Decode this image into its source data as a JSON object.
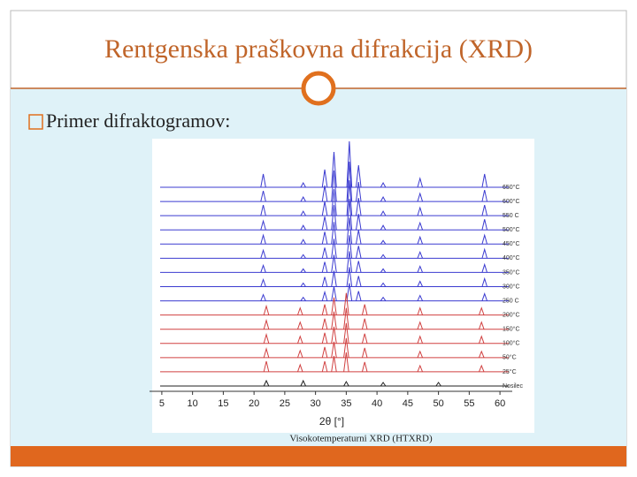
{
  "slide": {
    "title": "Rentgenska praškovna difrakcija (XRD)",
    "bullet": "Primer difraktogramov:",
    "caption": "Visokotemperaturni XRD (HTXRD)"
  },
  "figure": {
    "type": "line",
    "x_label": "2θ [°]",
    "xlim": [
      3,
      62
    ],
    "xticks": [
      5,
      10,
      15,
      20,
      25,
      30,
      35,
      40,
      45,
      50,
      55,
      60
    ],
    "series": [
      {
        "name": "650°C",
        "color": "#3b3bd0",
        "peaks": [
          21.5,
          28,
          31.5,
          33,
          35.5,
          37,
          41,
          47,
          57.5
        ],
        "heights": [
          15,
          5,
          20,
          40,
          52,
          25,
          5,
          10,
          15
        ]
      },
      {
        "name": "600°C",
        "color": "#3b3bd0",
        "peaks": [
          21.5,
          28,
          31.5,
          33,
          35.5,
          37,
          41,
          47,
          57.5
        ],
        "heights": [
          12,
          5,
          18,
          35,
          45,
          22,
          5,
          9,
          13
        ]
      },
      {
        "name": "550 C",
        "color": "#3b3bd0",
        "peaks": [
          21.5,
          28,
          31.5,
          33,
          35.5,
          37,
          41,
          47,
          57.5
        ],
        "heights": [
          12,
          5,
          16,
          30,
          40,
          20,
          5,
          9,
          12
        ]
      },
      {
        "name": "500°C",
        "color": "#3b3bd0",
        "peaks": [
          21.5,
          28,
          31.5,
          33,
          35.5,
          37,
          41,
          47,
          57.5
        ],
        "heights": [
          10,
          5,
          15,
          28,
          35,
          18,
          5,
          8,
          12
        ]
      },
      {
        "name": "450°C",
        "color": "#3b3bd0",
        "peaks": [
          21.5,
          28,
          31.5,
          33,
          35.5,
          37,
          41,
          47,
          57.5
        ],
        "heights": [
          10,
          5,
          14,
          25,
          30,
          16,
          4,
          8,
          10
        ]
      },
      {
        "name": "400°C",
        "color": "#3b3bd0",
        "peaks": [
          21.5,
          28,
          31.5,
          33,
          35.5,
          37,
          41,
          47,
          57.5
        ],
        "heights": [
          9,
          4,
          12,
          22,
          26,
          14,
          4,
          7,
          10
        ]
      },
      {
        "name": "350°C",
        "color": "#3b3bd0",
        "peaks": [
          21.5,
          28,
          31.5,
          33,
          35.5,
          37,
          41,
          47,
          57.5
        ],
        "heights": [
          8,
          4,
          12,
          20,
          24,
          13,
          4,
          7,
          9
        ]
      },
      {
        "name": "300°C",
        "color": "#3b3bd0",
        "peaks": [
          21.5,
          28,
          31.5,
          33,
          35.5,
          37,
          41,
          47,
          57.5
        ],
        "heights": [
          8,
          4,
          11,
          18,
          22,
          12,
          4,
          6,
          9
        ]
      },
      {
        "name": "250 C",
        "color": "#3b3bd0",
        "peaks": [
          21.5,
          28,
          31.5,
          33,
          35.5,
          37,
          41,
          47,
          57.5
        ],
        "heights": [
          7,
          4,
          10,
          16,
          20,
          11,
          4,
          6,
          8
        ]
      },
      {
        "name": "200°C",
        "color": "#d04040",
        "peaks": [
          22,
          27.5,
          31.5,
          33,
          35,
          38,
          47,
          57
        ],
        "heights": [
          10,
          8,
          12,
          20,
          25,
          12,
          8,
          8
        ]
      },
      {
        "name": "150°C",
        "color": "#d04040",
        "peaks": [
          22,
          27.5,
          31.5,
          33,
          35,
          38,
          47,
          57
        ],
        "heights": [
          10,
          8,
          12,
          20,
          24,
          12,
          8,
          8
        ]
      },
      {
        "name": "100°C",
        "color": "#d04040",
        "peaks": [
          22,
          27.5,
          31.5,
          33,
          35,
          38,
          47,
          57
        ],
        "heights": [
          10,
          8,
          12,
          19,
          23,
          11,
          8,
          8
        ]
      },
      {
        "name": "50°C",
        "color": "#d04040",
        "peaks": [
          22,
          27.5,
          31.5,
          33,
          35,
          38,
          47,
          57
        ],
        "heights": [
          10,
          8,
          12,
          18,
          22,
          11,
          7,
          7
        ]
      },
      {
        "name": "25°C",
        "color": "#d04040",
        "peaks": [
          22,
          27.5,
          31.5,
          33,
          35,
          38,
          47,
          57
        ],
        "heights": [
          12,
          8,
          12,
          18,
          22,
          11,
          7,
          7
        ]
      },
      {
        "name": "Nosilec",
        "color": "#222222",
        "peaks": [
          22,
          28,
          35,
          41,
          50
        ],
        "heights": [
          6,
          6,
          5,
          4,
          4
        ]
      }
    ]
  }
}
